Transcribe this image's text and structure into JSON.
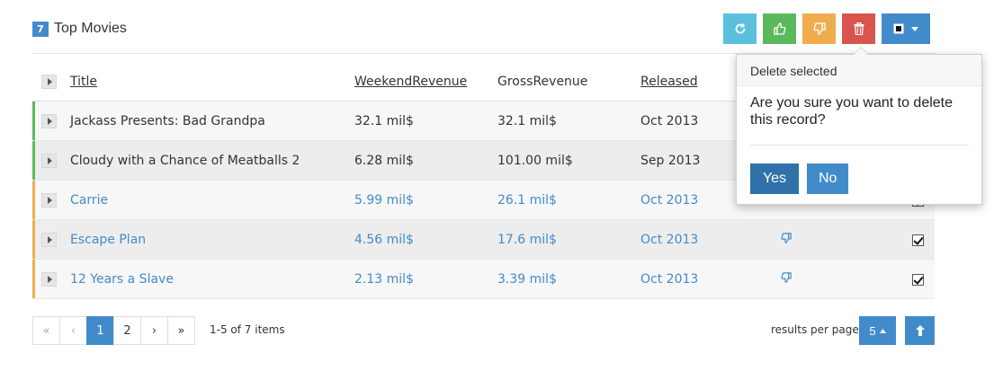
{
  "header": {
    "count": "7",
    "title": "Top Movies"
  },
  "toolbar": {
    "buttons": [
      "refresh-icon",
      "thumbs-up-icon",
      "thumbs-down-icon",
      "trash-icon",
      "square-icon"
    ]
  },
  "grid": {
    "columns": [
      "Title",
      "WeekendRevenue",
      "GrossRevenue",
      "Released"
    ],
    "rows": [
      {
        "title": "Jackass Presents: Bad Grandpa",
        "weekend": "32.1 mil$",
        "gross": "32.1 mil$",
        "released": "Oct 2013",
        "status": "liked",
        "checked": false
      },
      {
        "title": "Cloudy with a Chance of Meatballs 2",
        "weekend": "6.28 mil$",
        "gross": "101.00 mil$",
        "released": "Sep 2013",
        "status": "liked",
        "checked": false
      },
      {
        "title": "Carrie",
        "weekend": "5.99 mil$",
        "gross": "26.1 mil$",
        "released": "Oct 2013",
        "status": "disliked",
        "checked": true
      },
      {
        "title": "Escape Plan",
        "weekend": "4.56 mil$",
        "gross": "17.6 mil$",
        "released": "Oct 2013",
        "status": "disliked",
        "checked": true
      },
      {
        "title": "12 Years a Slave",
        "weekend": "2.13 mil$",
        "gross": "3.39 mil$",
        "released": "Oct 2013",
        "status": "disliked",
        "checked": true
      }
    ]
  },
  "popover": {
    "title": "Delete selected",
    "message": "Are you sure you want to delete this record?",
    "yes_label": "Yes",
    "no_label": "No"
  },
  "pager": {
    "first": "«",
    "prev": "‹",
    "pages": [
      "1",
      "2"
    ],
    "current": "1",
    "next": "›",
    "last": "»",
    "info": "1-5 of 7 items"
  },
  "page_size": {
    "label": "results per page",
    "value": "5"
  },
  "colors": {
    "liked": "#5cb85c",
    "disliked": "#f0ad4e",
    "primary": "#428bca",
    "info": "#5bc0de",
    "danger": "#d9534f"
  }
}
